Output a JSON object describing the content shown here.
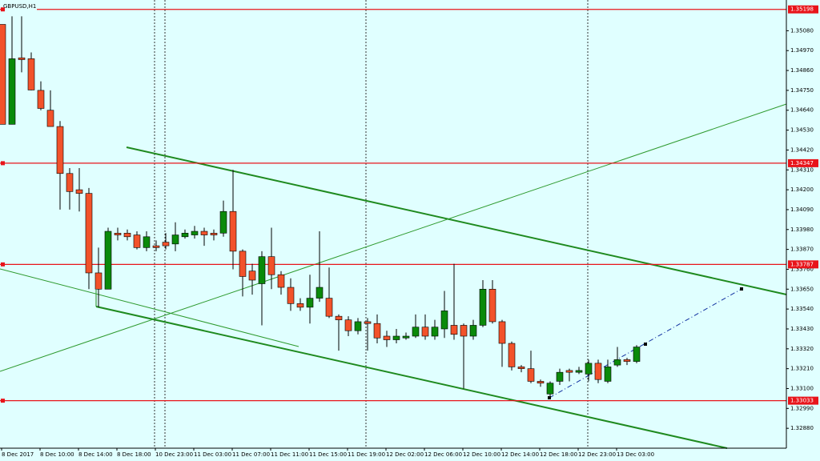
{
  "chart_data": {
    "type": "candlestick",
    "title": "GBPUSD,H1",
    "up_color": "#0a8a0a",
    "down_color": "#f2522a",
    "level_color": "#e8141a",
    "ylim": [
      1.3277,
      1.3525
    ],
    "yticks": [
      {
        "value": 1.3508,
        "label": "1.35080"
      },
      {
        "value": 1.3497,
        "label": "1.34970"
      },
      {
        "value": 1.3486,
        "label": "1.34860"
      },
      {
        "value": 1.3475,
        "label": "1.34750"
      },
      {
        "value": 1.3464,
        "label": "1.34640"
      },
      {
        "value": 1.3453,
        "label": "1.34530"
      },
      {
        "value": 1.3442,
        "label": "1.34420"
      },
      {
        "value": 1.3431,
        "label": "1.34310"
      },
      {
        "value": 1.342,
        "label": "1.34200"
      },
      {
        "value": 1.3409,
        "label": "1.34090"
      },
      {
        "value": 1.3398,
        "label": "1.33980"
      },
      {
        "value": 1.3387,
        "label": "1.33870"
      },
      {
        "value": 1.3376,
        "label": "1.33760"
      },
      {
        "value": 1.3365,
        "label": "1.33650"
      },
      {
        "value": 1.3354,
        "label": "1.33540"
      },
      {
        "value": 1.3343,
        "label": "1.33430"
      },
      {
        "value": 1.3332,
        "label": "1.33320"
      },
      {
        "value": 1.3321,
        "label": "1.33210"
      },
      {
        "value": 1.331,
        "label": "1.33100"
      },
      {
        "value": 1.3299,
        "label": "1.32990"
      },
      {
        "value": 1.3288,
        "label": "1.32880"
      }
    ],
    "levels": [
      1.35198,
      1.34347,
      1.33787,
      1.33033
    ],
    "xtick_labels": [
      "8 Dec 2017",
      "8 Dec 10:00",
      "8 Dec 14:00",
      "8 Dec 18:00",
      "10 Dec 23:00",
      "11 Dec 03:00",
      "11 Dec 07:00",
      "11 Dec 11:00",
      "11 Dec 15:00",
      "11 Dec 19:00",
      "12 Dec 02:00",
      "12 Dec 06:00",
      "12 Dec 10:00",
      "12 Dec 14:00",
      "12 Dec 18:00",
      "12 Dec 23:00",
      "13 Dec 03:00"
    ],
    "open": [
      1.35115,
      1.34562,
      1.3493,
      1.34925,
      1.3475,
      1.3464,
      1.3455,
      1.3429,
      1.342,
      1.3418,
      1.3374,
      1.3365,
      1.3396,
      1.3396,
      1.3395,
      1.3388,
      1.3389,
      1.3391,
      1.339,
      1.3394,
      1.3395,
      1.3397,
      1.3396,
      1.3396,
      1.3408,
      1.3386,
      1.3375,
      1.3368,
      1.3383,
      1.3373,
      1.3366,
      1.3357,
      1.3355,
      1.336,
      1.336,
      1.335,
      1.3348,
      1.3342,
      1.3347,
      1.3346,
      1.3339,
      1.3337,
      1.3338,
      1.3339,
      1.3344,
      1.3339,
      1.3343,
      1.3345,
      1.3345,
      1.3339,
      1.3345,
      1.3365,
      1.3347,
      1.3335,
      1.3322,
      1.3321,
      1.3314,
      1.3307,
      1.3314,
      1.332,
      1.3319,
      1.3318,
      1.3324,
      1.3314,
      1.3323,
      1.3326,
      1.3325
    ],
    "high": [
      1.35115,
      1.3516,
      1.3516,
      1.3496,
      1.348,
      1.3475,
      1.3458,
      1.3432,
      1.3432,
      1.3421,
      1.3388,
      1.3399,
      1.3399,
      1.3398,
      1.3397,
      1.3397,
      1.3392,
      1.3396,
      1.3402,
      1.3398,
      1.34,
      1.3399,
      1.3398,
      1.3414,
      1.3431,
      1.3387,
      1.3379,
      1.3386,
      1.3399,
      1.3375,
      1.3371,
      1.336,
      1.3373,
      1.3397,
      1.3377,
      1.3351,
      1.335,
      1.3349,
      1.3349,
      1.3351,
      1.3342,
      1.3343,
      1.3341,
      1.3351,
      1.3351,
      1.3348,
      1.3364,
      1.3379,
      1.3346,
      1.3348,
      1.337,
      1.337,
      1.3348,
      1.3336,
      1.3323,
      1.3331,
      1.3315,
      1.3314,
      1.3321,
      1.3321,
      1.3322,
      1.3326,
      1.3326,
      1.3326,
      1.3333,
      1.3327,
      1.3334
    ],
    "low": [
      1.34562,
      1.34562,
      1.3485,
      1.3475,
      1.3464,
      1.3455,
      1.3409,
      1.3409,
      1.3408,
      1.3365,
      1.3355,
      1.3365,
      1.3392,
      1.3392,
      1.3387,
      1.3386,
      1.3386,
      1.3387,
      1.3386,
      1.3393,
      1.3393,
      1.3389,
      1.3392,
      1.3394,
      1.3376,
      1.3361,
      1.3362,
      1.3345,
      1.3365,
      1.3362,
      1.3353,
      1.3353,
      1.3346,
      1.3358,
      1.3349,
      1.3331,
      1.3339,
      1.334,
      1.3331,
      1.3335,
      1.3333,
      1.3335,
      1.3337,
      1.3338,
      1.3337,
      1.3337,
      1.3338,
      1.3337,
      1.331,
      1.3337,
      1.3344,
      1.3346,
      1.3322,
      1.332,
      1.3319,
      1.3313,
      1.3311,
      1.3304,
      1.3312,
      1.3314,
      1.3318,
      1.3314,
      1.3313,
      1.3313,
      1.3322,
      1.3323,
      1.3324
    ],
    "close": [
      1.34562,
      1.34925,
      1.3492,
      1.34752,
      1.3465,
      1.3455,
      1.3429,
      1.3419,
      1.3418,
      1.3374,
      1.3365,
      1.3397,
      1.3395,
      1.3394,
      1.3388,
      1.3394,
      1.3388,
      1.3389,
      1.3395,
      1.3396,
      1.3397,
      1.3395,
      1.3395,
      1.3408,
      1.3386,
      1.3372,
      1.337,
      1.3383,
      1.3373,
      1.3366,
      1.3357,
      1.3355,
      1.336,
      1.3366,
      1.335,
      1.3348,
      1.3342,
      1.3347,
      1.3346,
      1.3338,
      1.3337,
      1.3339,
      1.3339,
      1.3344,
      1.3339,
      1.3344,
      1.3353,
      1.334,
      1.3339,
      1.3345,
      1.3365,
      1.3347,
      1.3335,
      1.3322,
      1.3321,
      1.3314,
      1.3313,
      1.3313,
      1.3319,
      1.3319,
      1.332,
      1.3324,
      1.3315,
      1.3322,
      1.3326,
      1.3325,
      1.3333
    ]
  }
}
